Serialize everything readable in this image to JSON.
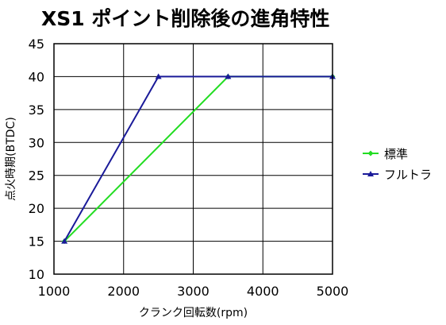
{
  "chart_data": {
    "type": "line",
    "title": "XS1 ポイント削除後の進角特性",
    "xlabel": "クランク回転数(rpm)",
    "ylabel": "点火時期(BTDC)",
    "xlim": [
      1000,
      5000
    ],
    "ylim": [
      10,
      45
    ],
    "xticks": [
      1000,
      2000,
      3000,
      4000,
      5000
    ],
    "yticks": [
      10,
      15,
      20,
      25,
      30,
      35,
      40,
      45
    ],
    "grid": true,
    "legend_position": "right",
    "series": [
      {
        "name": "標準",
        "color": "#22dd22",
        "marker": "diamond",
        "points": [
          {
            "x": 1150,
            "y": 15
          },
          {
            "x": 3500,
            "y": 40
          },
          {
            "x": 5000,
            "y": 40
          }
        ]
      },
      {
        "name": "フルトラ",
        "color": "#1a1a99",
        "marker": "triangle",
        "points": [
          {
            "x": 1150,
            "y": 15
          },
          {
            "x": 2500,
            "y": 40
          },
          {
            "x": 3500,
            "y": 40
          },
          {
            "x": 5000,
            "y": 40
          }
        ]
      }
    ]
  }
}
